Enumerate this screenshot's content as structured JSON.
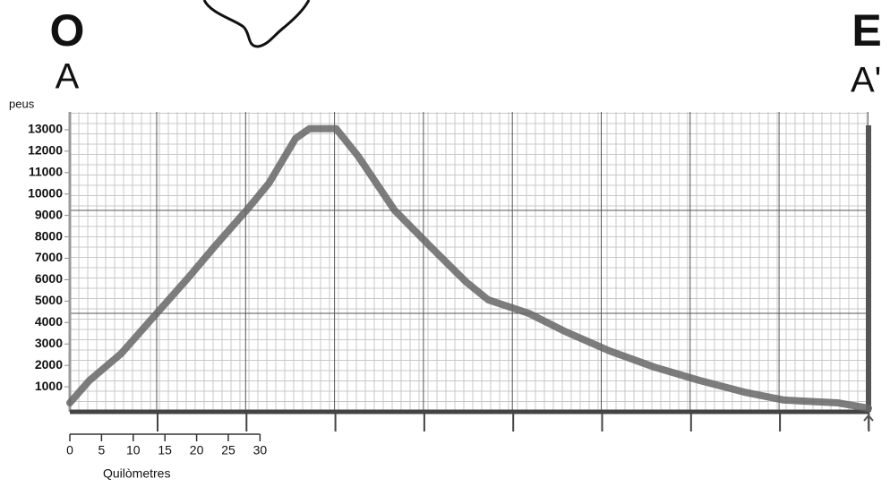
{
  "chart_data": {
    "type": "line",
    "letters": {
      "west": "O",
      "east": "E",
      "start": "A",
      "end": "A'"
    },
    "y_label": "peus",
    "x": [
      0,
      3.1,
      8.1,
      13.7,
      18.7,
      22.9,
      27.9,
      31.4,
      35.6,
      37.8,
      42,
      45.5,
      51.2,
      56.8,
      62.5,
      66,
      72.4,
      78,
      85.1,
      92.2,
      99.3,
      106.4,
      112.7,
      121.2,
      126
    ],
    "series": [
      {
        "color": "#666666",
        "values": [
          250,
          1300,
          2550,
          4430,
          6100,
          7570,
          9250,
          10500,
          12590,
          13050,
          13050,
          11760,
          9250,
          7570,
          5900,
          5060,
          4430,
          3600,
          2680,
          1920,
          1300,
          750,
          380,
          250,
          0
        ]
      }
    ],
    "xlim": [
      0,
      126
    ],
    "ylim": [
      0,
      14000
    ],
    "yticks": [
      1000,
      2000,
      3000,
      4000,
      5000,
      6000,
      7000,
      8000,
      9000,
      10000,
      11000,
      12000,
      13000
    ],
    "scale_bar": {
      "ticks": [
        0,
        5,
        10,
        15,
        20,
        25,
        30
      ],
      "label": "Quilòmetres"
    },
    "grid": true
  }
}
